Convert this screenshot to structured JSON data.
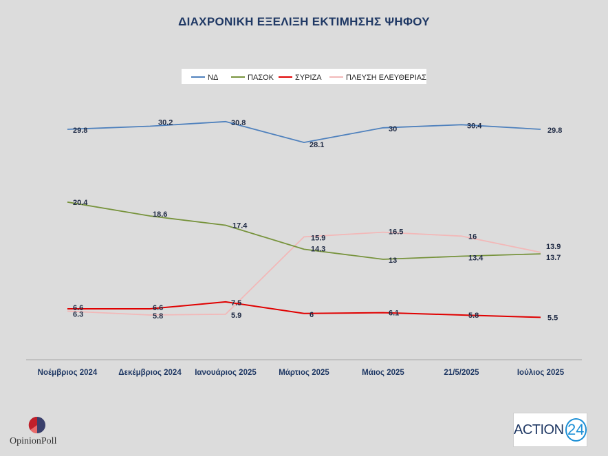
{
  "chart_data": {
    "type": "line",
    "title": "ΔΙΑΧΡΟΝΙΚΗ ΕΞΕΛΙΞΗ ΕΚΤΙΜΗΣΗΣ ΨΗΦΟΥ",
    "categories": [
      "Νοέμβριος 2024",
      "Δεκέμβριος 2024",
      "Ιανουάριος 2025",
      "Μάρτιος 2025",
      "Μάιος 2025",
      "21/5/2025",
      "Ιούλιος 2025"
    ],
    "series": [
      {
        "name": "ΝΔ",
        "color": "#4f81bd",
        "values": [
          29.8,
          30.2,
          30.8,
          28.1,
          30,
          30.4,
          29.8
        ],
        "labels": [
          "29.8",
          "30.2",
          "30.8",
          "28.1",
          "30",
          "30.4",
          "29.8"
        ]
      },
      {
        "name": "ΠΑΣΟΚ",
        "color": "#77933c",
        "values": [
          20.4,
          18.6,
          17.4,
          14.3,
          13,
          13.4,
          13.7
        ],
        "labels": [
          "20.4",
          "18.6",
          "17.4",
          "14.3",
          "13",
          "13.4",
          "13.7"
        ]
      },
      {
        "name": "ΣΥΡΙΖΑ",
        "color": "#e00000",
        "values": [
          6.6,
          6.6,
          7.5,
          6,
          6.1,
          5.8,
          5.5
        ],
        "labels": [
          "6.6",
          "6.6",
          "7.5",
          "6",
          "6.1",
          "5.8",
          "5.5"
        ]
      },
      {
        "name": "ΠΛΕΥΣΗ ΕΛΕΥΘΕΡΙΑΣ",
        "color": "#f2b8b8",
        "values": [
          6.3,
          5.8,
          5.9,
          15.9,
          16.5,
          16,
          13.9
        ],
        "labels": [
          "6.3",
          "5.8",
          "5.9",
          "15.9",
          "16.5",
          "16",
          "13.9"
        ]
      }
    ],
    "legend_position": "top-center",
    "grid": false
  },
  "logos": {
    "opinion_poll": {
      "text_a": "Opinion",
      "text_b": "Poll",
      "icon": "opinionpoll-logo-icon"
    },
    "action24": {
      "text": "ACTION",
      "number": "24"
    }
  }
}
